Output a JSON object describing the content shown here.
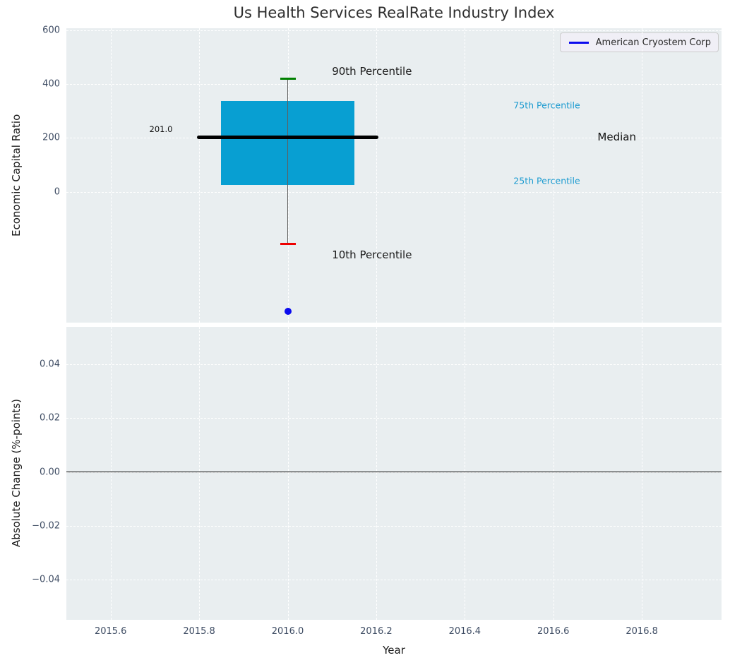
{
  "title": "Us Health Services RealRate Industry Index",
  "chart_data": {
    "type": "box",
    "title": "Us Health Services RealRate Industry Index",
    "legend": {
      "label": "American Cryostem Corp",
      "position": "upper right",
      "line_color": "#0b0bee"
    },
    "x_axis": {
      "label": "Year",
      "range": [
        2015.5,
        2016.98
      ],
      "tick_values": [
        2015.6,
        2015.8,
        2016.0,
        2016.2,
        2016.4,
        2016.6,
        2016.8
      ],
      "tick_labels": [
        "2015.6",
        "2015.8",
        "2016.0",
        "2016.2",
        "2016.4",
        "2016.6",
        "2016.8"
      ],
      "grid": true
    },
    "top_panel": {
      "ylabel": "Economic Capital Ratio",
      "y_range": [
        -486,
        607
      ],
      "tick_values": [
        0,
        200,
        400,
        600
      ],
      "tick_labels": [
        "0",
        "200",
        "400",
        "600"
      ],
      "box": {
        "x": 2016.0,
        "box_half_width": 0.15,
        "median_half_width": 0.205,
        "p10": -193,
        "p25": 24,
        "median": 201.0,
        "p75": 338,
        "p90": 420
      },
      "company_point": {
        "label": "American Cryostem Corp",
        "x": 2016.0,
        "y": -445
      },
      "annotations": [
        {
          "name": "90th-percentile-label",
          "text": "90th Percentile",
          "x": 2016.1,
          "y": 447,
          "anchor": "left",
          "color": "#1a1a1a",
          "font_size": 15
        },
        {
          "name": "10th-percentile-label",
          "text": "10th Percentile",
          "x": 2016.1,
          "y": -234,
          "anchor": "left",
          "color": "#1a1a1a",
          "font_size": 15
        },
        {
          "name": "median-value-label",
          "text": "201.0",
          "x": 2015.74,
          "y": 231,
          "anchor": "right",
          "color": "#111111",
          "font_size": 11.5
        },
        {
          "name": "75th-percentile-label",
          "text": "75th Percentile",
          "x": 2016.51,
          "y": 320,
          "anchor": "left",
          "color": "#1c9bd0",
          "font_size": 12.5
        },
        {
          "name": "median-label",
          "text": "Median",
          "x": 2016.7,
          "y": 204,
          "anchor": "left",
          "color": "#111111",
          "font_size": 15
        },
        {
          "name": "25th-percentile-label",
          "text": "25th Percentile",
          "x": 2016.51,
          "y": 42,
          "anchor": "left",
          "color": "#1c9bd0",
          "font_size": 12.5
        }
      ]
    },
    "bottom_panel": {
      "ylabel": "Absolute Change (%-points)",
      "y_range": [
        -0.055,
        0.054
      ],
      "tick_values": [
        0.04,
        0.02,
        0.0,
        -0.02,
        -0.04
      ],
      "tick_labels": [
        "0.04",
        "0.02",
        "0.00",
        "−0.02",
        "−0.04"
      ],
      "zero_line": 0.0
    },
    "colors": {
      "plot_background": "#e9eef0",
      "grid": "#ffffff",
      "box_fill": "#089fd2",
      "median_line": "#000000",
      "whisker": "#606060",
      "cap_top": "#008000",
      "cap_bottom": "#ee0000",
      "company_point": "#0b0bee",
      "tick_label": "#3e4c63",
      "title": "#2d2d2d"
    }
  }
}
